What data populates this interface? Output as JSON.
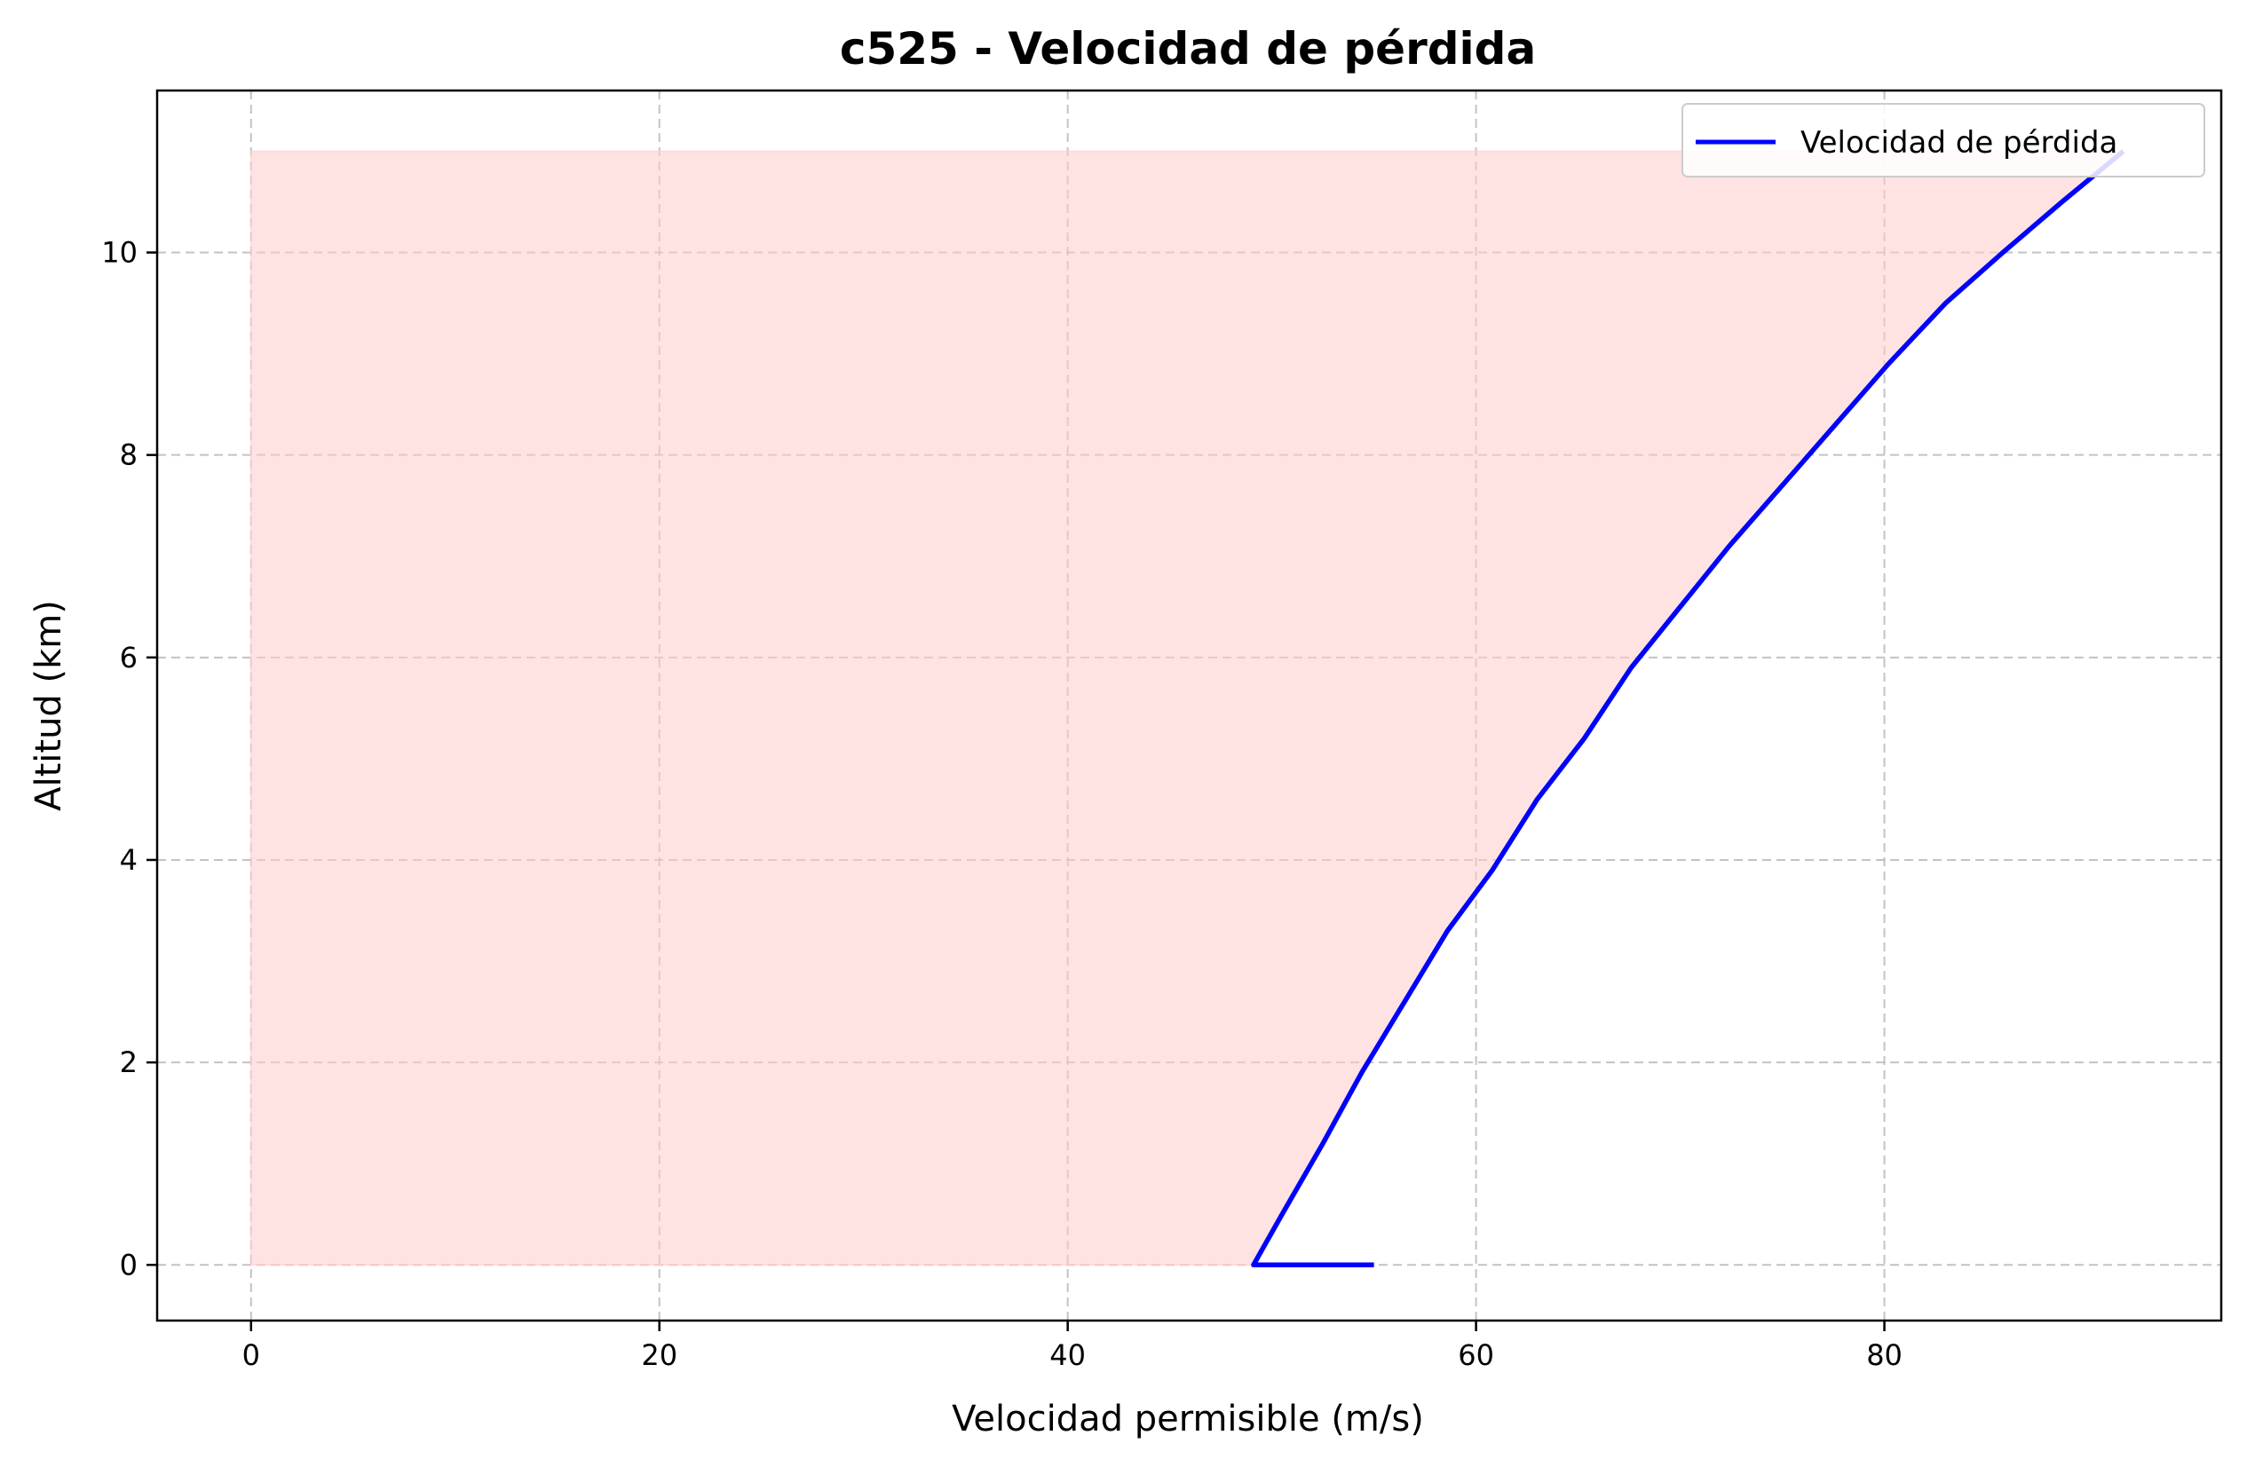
{
  "chart_data": {
    "type": "line",
    "title": "c525 - Velocidad de pérdida",
    "xlabel": "Velocidad permisible (m/s)",
    "ylabel": "Altitud (km)",
    "xlim": [
      -4.6,
      96.5
    ],
    "ylim": [
      -0.55,
      11.6
    ],
    "xticks": [
      0,
      20,
      40,
      60,
      80
    ],
    "yticks": [
      0,
      2,
      4,
      6,
      8,
      10
    ],
    "grid": true,
    "legend_position": "top-right",
    "series": [
      {
        "name": "Velocidad de pérdida",
        "color": "#0000ff",
        "x": [
          55.0,
          49.1,
          50.5,
          52.5,
          54.4,
          56.5,
          58.6,
          60.8,
          63.0,
          65.3,
          67.6,
          70.0,
          72.4,
          75.0,
          77.6,
          80.2,
          83.0,
          85.8,
          88.7,
          91.7
        ],
        "y": [
          0.0,
          0.0,
          0.5,
          1.2,
          1.9,
          2.6,
          3.3,
          3.9,
          4.6,
          5.2,
          5.9,
          6.5,
          7.1,
          7.7,
          8.3,
          8.9,
          9.5,
          10.0,
          10.5,
          11.0
        ]
      }
    ],
    "fill_region": {
      "color": "#ffcccc",
      "opacity": 0.55,
      "x_from": 0,
      "y_range": [
        0,
        11
      ]
    }
  }
}
